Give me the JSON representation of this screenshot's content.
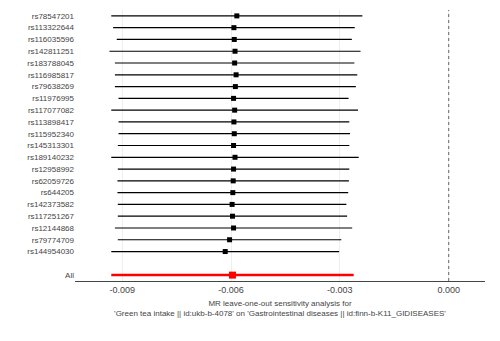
{
  "chart_data": {
    "type": "forest",
    "xlabel": "MR leave-one-out sensitivity analysis for\n'Green tea intake || id:ukb-b-4078' on 'Gastrointestinal diseases || id:finn-b-K11_GIDISEASES'",
    "categories": [
      "rs78547201",
      "rs113322644",
      "rs116035596",
      "rs142811251",
      "rs183788045",
      "rs116985817",
      "rs79638269",
      "rs11976995",
      "rs117077082",
      "rs113898417",
      "rs115952340",
      "rs145313301",
      "rs189140232",
      "rs12958992",
      "rs62059726",
      "rs644205",
      "rs142373582",
      "rs117251267",
      "rs12144868",
      "rs79774709",
      "rs144954030",
      null,
      "All"
    ],
    "values": [
      -0.00584,
      -0.00592,
      -0.00591,
      -0.00589,
      -0.0059,
      -0.00586,
      -0.00588,
      -0.00593,
      -0.0059,
      -0.00592,
      -0.00591,
      -0.00593,
      -0.00589,
      -0.00593,
      -0.00594,
      -0.00595,
      -0.00597,
      -0.00596,
      -0.00593,
      -0.00604,
      -0.00616,
      null,
      -0.00596
    ],
    "ci_low": [
      -0.0093,
      -0.00925,
      -0.00915,
      -0.00935,
      -0.0092,
      -0.0092,
      -0.0092,
      -0.0091,
      -0.0093,
      -0.0091,
      -0.0091,
      -0.00912,
      -0.0093,
      -0.00912,
      -0.00913,
      -0.00913,
      -0.00912,
      -0.00912,
      -0.0092,
      -0.00912,
      -0.0093,
      null,
      -0.0093
    ],
    "ci_high": [
      -0.00238,
      -0.00259,
      -0.00267,
      -0.00243,
      -0.0026,
      -0.00252,
      -0.00256,
      -0.00276,
      -0.0025,
      -0.00274,
      -0.00272,
      -0.00274,
      -0.00248,
      -0.00274,
      -0.00275,
      -0.00277,
      -0.00282,
      -0.0028,
      -0.00266,
      -0.00296,
      -0.00302,
      null,
      -0.00262
    ],
    "colors": [
      "#000000",
      "#000000",
      "#000000",
      "#000000",
      "#000000",
      "#000000",
      "#000000",
      "#000000",
      "#000000",
      "#000000",
      "#000000",
      "#000000",
      "#000000",
      "#000000",
      "#000000",
      "#000000",
      "#000000",
      "#000000",
      "#000000",
      "#000000",
      "#000000",
      null,
      "#ff0000"
    ],
    "reference_line": 0.0,
    "xlim": [
      -0.0103,
      0.001
    ],
    "xticks": [
      -0.009,
      -0.006,
      -0.003,
      {
        "value": 0.0,
        "label": "0.000"
      }
    ],
    "grid": "x"
  }
}
